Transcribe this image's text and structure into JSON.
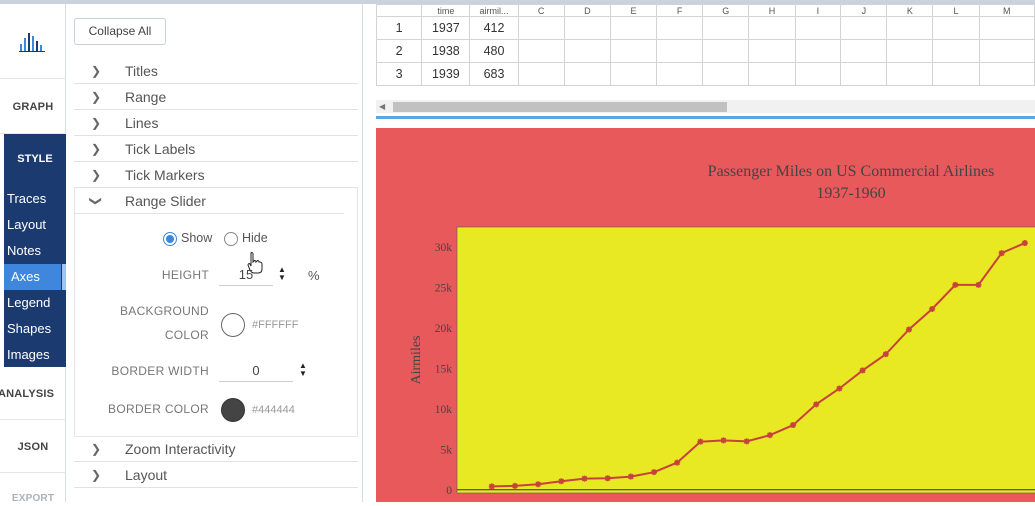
{
  "nav": {
    "graph": "GRAPH",
    "style": "STYLE",
    "style_items": [
      "Traces",
      "Layout",
      "Notes",
      "Axes",
      "Legend",
      "Shapes",
      "Images"
    ],
    "active_item": "Axes",
    "analysis": "ANALYSIS",
    "json": "JSON",
    "export": "EXPORT",
    "logo_icon": "bar-chart-logo-icon"
  },
  "panel": {
    "collapse_all": "Collapse All",
    "folds_top": [
      "Titles",
      "Range",
      "Lines",
      "Tick Labels",
      "Tick Markers"
    ],
    "open_fold": "Range Slider",
    "folds_bottom": [
      "Zoom Interactivity",
      "Layout"
    ],
    "range_slider": {
      "show_label": "Show",
      "hide_label": "Hide",
      "selected": "Show",
      "height_label": "HEIGHT",
      "height_value": "15",
      "height_unit": "%",
      "bg_label_1": "BACKGROUND",
      "bg_label_2": "COLOR",
      "bg_color": "#FFFFFF",
      "border_width_label": "BORDER WIDTH",
      "border_width_value": "0",
      "border_color_label": "BORDER COLOR",
      "border_color": "#444444"
    }
  },
  "grid": {
    "header": [
      "",
      "time",
      "airmil...",
      "C",
      "D",
      "E",
      "F",
      "G",
      "H",
      "I",
      "J",
      "K",
      "L",
      "M"
    ],
    "rows": [
      [
        "1",
        "1937",
        "412"
      ],
      [
        "2",
        "1938",
        "480"
      ],
      [
        "3",
        "1939",
        "683"
      ]
    ]
  },
  "chart_data": {
    "type": "line",
    "title": "Passenger Miles on US Commercial Airlines",
    "subtitle": "1937-1960",
    "ylabel": "Airmiles",
    "xlabel": "",
    "y_ticks": [
      "0",
      "5k",
      "10k",
      "15k",
      "20k",
      "25k",
      "30k"
    ],
    "ylim": [
      -400,
      32500
    ],
    "xlim": [
      1935.5,
      1961
    ],
    "x": [
      1937,
      1938,
      1939,
      1940,
      1941,
      1942,
      1943,
      1944,
      1945,
      1946,
      1947,
      1948,
      1949,
      1950,
      1951,
      1952,
      1953,
      1954,
      1955,
      1956,
      1957,
      1958,
      1959,
      1960
    ],
    "values": [
      412,
      480,
      683,
      1052,
      1385,
      1418,
      1634,
      2178,
      3362,
      5948,
      6109,
      5981,
      6753,
      8003,
      10566,
      12528,
      14760,
      16769,
      19819,
      22362,
      25340,
      25343,
      29269,
      30514
    ],
    "paper_bgcolor": "#e8595b",
    "plot_bgcolor": "#e8e823",
    "line_color": "#c8413d",
    "grid": false,
    "legend": "none"
  }
}
